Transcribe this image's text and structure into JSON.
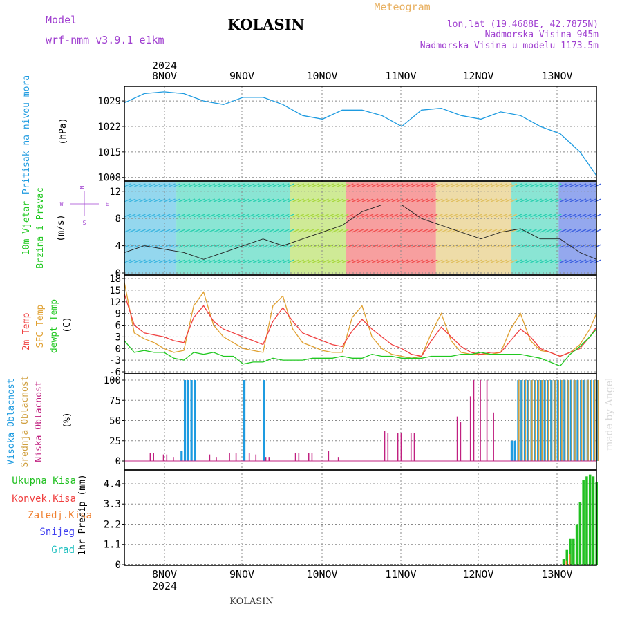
{
  "header": {
    "model_label": "Model",
    "model_name": "wrf-nmm_v3.9.1 e1km",
    "station": "KOLASIN",
    "meteogram": "Meteogram",
    "lonlat": "lon,lat (19.4688E, 42.7875N)",
    "elev": "Nadmorska Visina 945m",
    "elev_model": "Nadmorska Visina u modelu 1173.5m",
    "year": "2024",
    "footer_station": "KOLASIN",
    "made_by": "made by Angel"
  },
  "colors": {
    "pressure": "#1e9be0",
    "temp2m": "#f04040",
    "sfc": "#e0a030",
    "dew": "#20c820",
    "vjetar_text": "#20c820",
    "purple": "#a040d0",
    "high_cloud": "#1e9be0",
    "mid_cloud": "#d0a040",
    "low_cloud": "#c02080",
    "precip_total": "#20c020",
    "precip_conv": "#f04040",
    "precip_frz": "#f08030",
    "snow": "#4040f0",
    "hail": "#20c0c0",
    "meteogram_title": "#e8b060"
  },
  "days": [
    "8NOV",
    "9NOV",
    "10NOV",
    "11NOV",
    "12NOV",
    "13NOV"
  ],
  "panels": {
    "pressure": {
      "label": "Pritisak na nivou mora",
      "unit": "(hPa)",
      "ticks": [
        "1029",
        "1022",
        "1015",
        "1008"
      ]
    },
    "wind": {
      "label1": "10m Vjetar",
      "label2": "Brzina i Pravac",
      "unit": "(m/s)",
      "ticks": [
        "12",
        "8",
        "4",
        "0"
      ],
      "compass": {
        "n": "N",
        "s": "S",
        "e": "E",
        "w": "W"
      }
    },
    "temp": {
      "label1": "2m Temp",
      "label2": "SFC Temp",
      "label3": "dewpt Temp",
      "unit": "(C)",
      "ticks": [
        "18",
        "15",
        "12",
        "9",
        "6",
        "3",
        "0",
        "-3",
        "-6"
      ]
    },
    "cloud": {
      "label1": "Visoka Oblacnost",
      "label2": "Srednja Oblacnost",
      "label3": "Niska Oblacnost",
      "unit": "(%)",
      "ticks": [
        "100",
        "75",
        "50",
        "25",
        "0"
      ]
    },
    "precip": {
      "label1": "Ukupna Kisa",
      "label2": "Konvek.Kisa",
      "label3": "Zaledj.Kisa",
      "label4": "Snijeg",
      "label5": "Grad",
      "unit": "1hr Precip (mm)",
      "ticks": [
        "4.4",
        "3.3",
        "2.2",
        "1.1",
        "0"
      ]
    }
  },
  "chart_data": [
    {
      "type": "line",
      "title": "Pritisak na nivou mora",
      "ylabel": "(hPa)",
      "ylim": [
        1007,
        1033
      ],
      "x": [
        0,
        6,
        12,
        18,
        24,
        30,
        36,
        42,
        48,
        54,
        60,
        66,
        72,
        78,
        84,
        90,
        96,
        102,
        108,
        114,
        120,
        126,
        132,
        138,
        143
      ],
      "series": [
        {
          "values": [
            1028.5,
            1031,
            1031.5,
            1031,
            1029,
            1028,
            1030,
            1030,
            1028,
            1025,
            1024,
            1026.5,
            1026.5,
            1025,
            1022,
            1026.5,
            1027,
            1025,
            1024,
            1026,
            1025,
            1022,
            1020,
            1015,
            1008.5
          ]
        }
      ]
    },
    {
      "type": "line",
      "title": "10m Vjetar Brzina i Pravac",
      "ylabel": "(m/s)",
      "ylim": [
        0,
        13.5
      ],
      "x": [
        0,
        6,
        12,
        18,
        24,
        30,
        36,
        42,
        48,
        54,
        60,
        66,
        72,
        78,
        84,
        90,
        96,
        102,
        108,
        114,
        120,
        126,
        132,
        138,
        143
      ],
      "series": [
        {
          "values": [
            3,
            4,
            3.5,
            3,
            2,
            3,
            4,
            5,
            4,
            5,
            6,
            7,
            9,
            10,
            10,
            8,
            7,
            6,
            5,
            6,
            6.5,
            5,
            5,
            3,
            2
          ]
        }
      ]
    },
    {
      "type": "line",
      "title": "2m Temp / SFC Temp / dewpt Temp",
      "ylabel": "(C)",
      "ylim": [
        -6,
        18
      ],
      "x": [
        0,
        3,
        6,
        9,
        12,
        15,
        18,
        21,
        24,
        27,
        30,
        33,
        36,
        39,
        42,
        45,
        48,
        51,
        54,
        57,
        60,
        63,
        66,
        69,
        72,
        75,
        78,
        81,
        84,
        87,
        90,
        93,
        96,
        99,
        102,
        105,
        108,
        111,
        114,
        117,
        120,
        123,
        126,
        129,
        132,
        135,
        138,
        141,
        143
      ],
      "series": [
        {
          "name": "2m Temp",
          "values": [
            14,
            6,
            4,
            3.5,
            3,
            2,
            1.5,
            8,
            11,
            7,
            5,
            4,
            3,
            2,
            1,
            7,
            10.5,
            7,
            4,
            3,
            2,
            1,
            0.5,
            4.5,
            7.5,
            5,
            3,
            1,
            0,
            -1.5,
            -2,
            2,
            5.5,
            3,
            0.5,
            -1,
            -1.5,
            -1,
            -1,
            2,
            5,
            3,
            0,
            -1,
            -2,
            -1,
            0,
            3,
            5.5
          ]
        },
        {
          "name": "SFC Temp",
          "values": [
            17,
            4,
            2.5,
            1.5,
            0,
            -1,
            -0.5,
            11,
            14.5,
            6,
            3,
            1.5,
            0,
            -0.5,
            -1,
            11,
            13.5,
            5,
            1.5,
            0.5,
            -0.5,
            -1,
            -1,
            8,
            11,
            3,
            0,
            -1.5,
            -2,
            -2.5,
            -2,
            4,
            9,
            2,
            -1,
            -1.5,
            -1.5,
            -1.5,
            -1,
            5,
            9,
            2,
            -0.5,
            -1,
            -2,
            -1,
            1,
            5,
            9
          ]
        },
        {
          "name": "dewpt Temp",
          "values": [
            2,
            -1,
            -0.5,
            -1,
            -1,
            -2.5,
            -3,
            -1,
            -1.5,
            -1,
            -2,
            -2,
            -4,
            -3.5,
            -3.5,
            -2.5,
            -3,
            -3,
            -3,
            -2.5,
            -2.5,
            -2.5,
            -2,
            -2.5,
            -2.5,
            -1.5,
            -2,
            -2,
            -2.5,
            -2.5,
            -2.5,
            -2,
            -2,
            -2,
            -1.5,
            -1.5,
            -1,
            -1.5,
            -1.5,
            -1.5,
            -1.5,
            -2,
            -2.5,
            -3.5,
            -4.5,
            -1.5,
            0.5,
            3,
            5
          ]
        }
      ]
    },
    {
      "type": "bar",
      "title": "Visoka / Srednja / Niska Oblacnost",
      "ylabel": "(%)",
      "ylim": [
        0,
        100
      ],
      "series": [
        {
          "name": "Visoka Oblacnost",
          "x": [
            17,
            18,
            19,
            20,
            21,
            36,
            42,
            117,
            118,
            119,
            120,
            121,
            122,
            123,
            124,
            125,
            126,
            127,
            128,
            129,
            130,
            131,
            132,
            133,
            134,
            135,
            136,
            137,
            138,
            139,
            140,
            141,
            142,
            143
          ],
          "values": [
            12,
            100,
            100,
            100,
            100,
            100,
            100,
            25,
            25,
            100,
            100,
            100,
            100,
            100,
            100,
            100,
            100,
            100,
            100,
            100,
            100,
            100,
            100,
            100,
            100,
            100,
            100,
            100,
            100,
            100,
            100,
            100,
            100,
            100
          ]
        },
        {
          "name": "Srednja Oblacnost",
          "x": [
            119,
            120,
            121,
            122,
            123,
            124,
            125,
            126,
            127,
            128,
            129,
            130,
            131,
            132,
            133,
            134,
            135,
            136,
            137,
            138,
            139,
            140,
            141,
            142,
            143
          ],
          "values": [
            100,
            100,
            100,
            100,
            100,
            100,
            100,
            100,
            100,
            100,
            100,
            100,
            100,
            100,
            100,
            100,
            100,
            100,
            100,
            100,
            100,
            100,
            100,
            100,
            100
          ]
        },
        {
          "name": "Niska Oblacnost",
          "x": [
            8,
            9,
            12,
            13,
            15,
            26,
            28,
            32,
            34,
            38,
            40,
            43,
            44,
            52,
            53,
            56,
            57,
            62,
            65,
            79,
            80,
            83,
            84,
            87,
            88,
            101,
            102,
            105,
            106,
            108,
            110,
            112
          ],
          "values": [
            10,
            10,
            8,
            8,
            5,
            8,
            5,
            10,
            10,
            10,
            8,
            5,
            5,
            10,
            10,
            10,
            10,
            12,
            5,
            37,
            35,
            35,
            35,
            35,
            35,
            55,
            48,
            80,
            100,
            100,
            100,
            60
          ]
        }
      ]
    },
    {
      "type": "bar",
      "title": "1hr Precip",
      "ylabel": "1hr Precip (mm)",
      "ylim": [
        0,
        5
      ],
      "series": [
        {
          "name": "Ukupna Kisa",
          "x": [
            133,
            134,
            135,
            136,
            137,
            138,
            139,
            140,
            141,
            142,
            143
          ],
          "values": [
            0.3,
            0.8,
            1.4,
            1.4,
            2.2,
            3.4,
            4.6,
            4.8,
            4.9,
            4.8,
            4.5
          ]
        },
        {
          "name": "Zaledj.Kisa",
          "x": [
            134,
            135
          ],
          "values": [
            0.2,
            0.6
          ]
        }
      ]
    }
  ]
}
